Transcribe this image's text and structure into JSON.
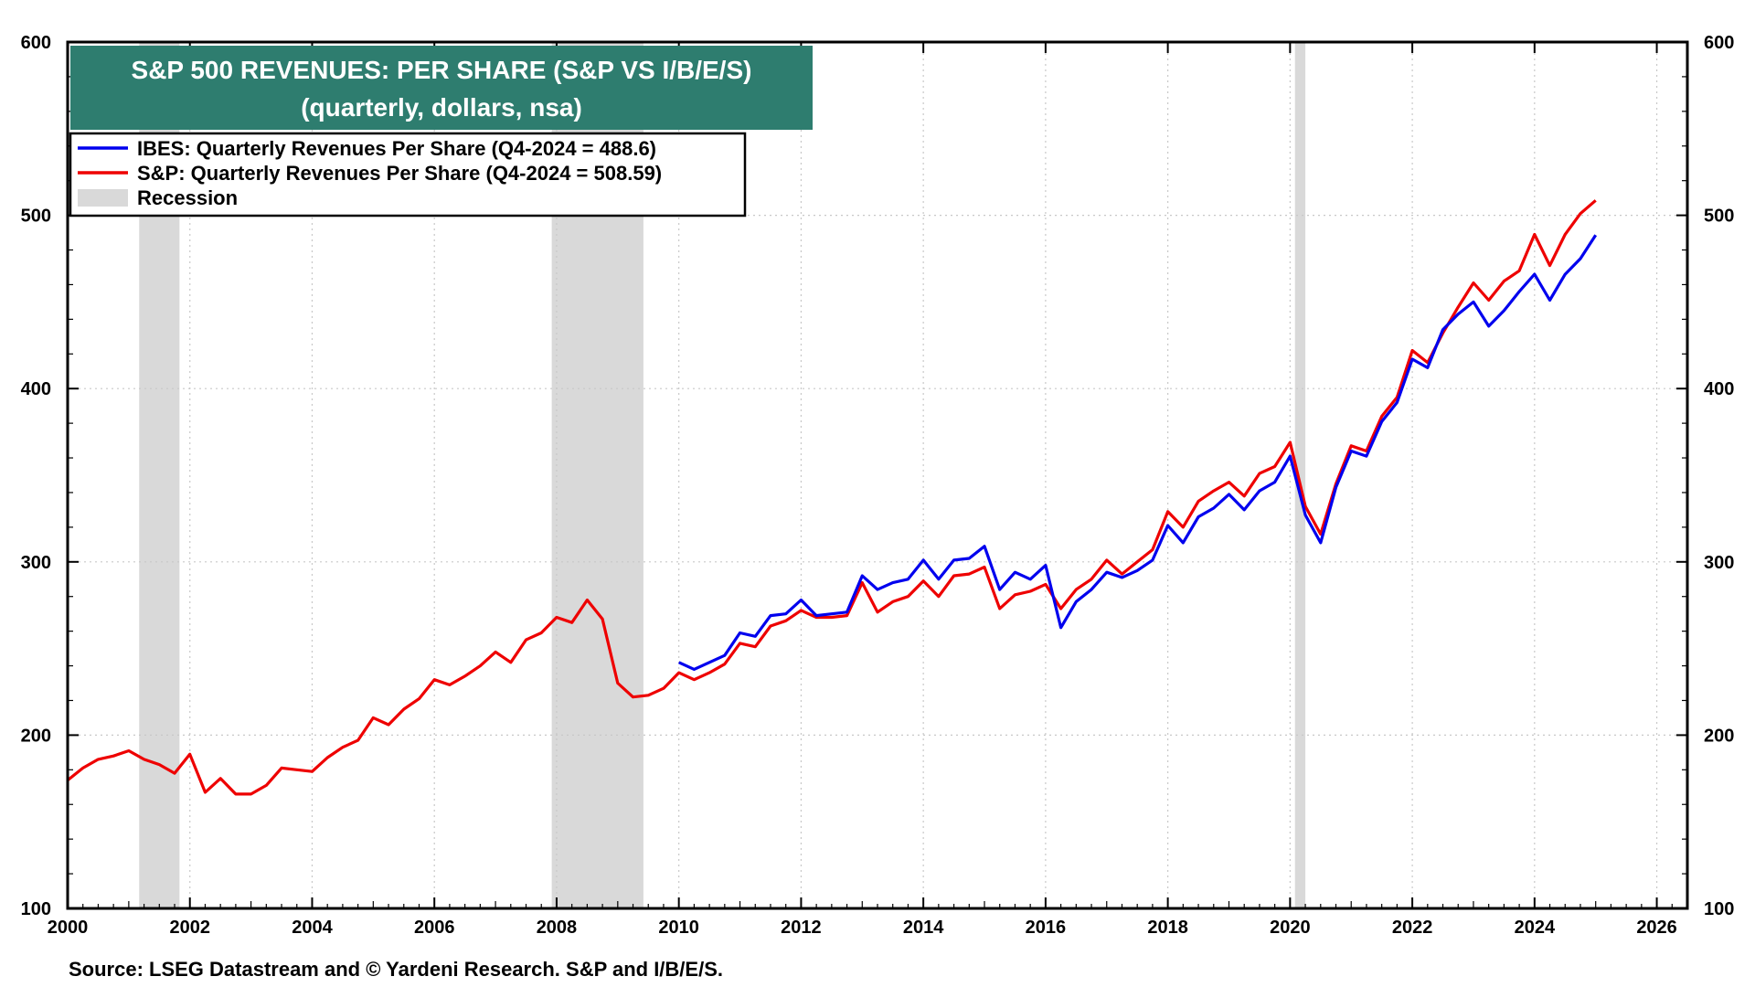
{
  "chart_data": {
    "type": "line",
    "title": "S&P 500 REVENUES: PER SHARE (S&P VS I/B/E/S)",
    "subtitle": "(quarterly, dollars, nsa)",
    "source": "Source: LSEG Datastream and © Yardeni Research. S&P and I/B/E/S.",
    "xlim": [
      2000,
      2026.5
    ],
    "ylim": [
      100,
      600
    ],
    "x_ticks": [
      "2000",
      "2002",
      "2004",
      "2006",
      "2008",
      "2010",
      "2012",
      "2014",
      "2016",
      "2018",
      "2020",
      "2022",
      "2024",
      "2026"
    ],
    "y_ticks": [
      "100",
      "200",
      "300",
      "400",
      "500",
      "600"
    ],
    "y_ticks_right": [
      "100",
      "200",
      "300",
      "400",
      "500",
      "600"
    ],
    "grid": true,
    "legend_position": "top-left",
    "recessions": [
      [
        2001.17,
        2001.83
      ],
      [
        2007.92,
        2009.42
      ],
      [
        2020.08,
        2020.25
      ]
    ],
    "legend": {
      "ibes": "IBES: Quarterly Revenues Per Share (Q4-2024 = 488.6)",
      "sp": "S&P: Quarterly Revenues Per Share (Q4-2024 = 508.59)",
      "recession": "Recession"
    },
    "colors": {
      "ibes": "#0000ee",
      "sp": "#ee0000",
      "recession": "#d9d9d9",
      "title_bg": "#2e7d6f"
    },
    "series": [
      {
        "name": "IBES: Quarterly Revenues Per Share (Q4-2024 = 488.6)",
        "x": [
          2010.0,
          2010.25,
          2010.5,
          2010.75,
          2011.0,
          2011.25,
          2011.5,
          2011.75,
          2012.0,
          2012.25,
          2012.5,
          2012.75,
          2013.0,
          2013.25,
          2013.5,
          2013.75,
          2014.0,
          2014.25,
          2014.5,
          2014.75,
          2015.0,
          2015.25,
          2015.5,
          2015.75,
          2016.0,
          2016.25,
          2016.5,
          2016.75,
          2017.0,
          2017.25,
          2017.5,
          2017.75,
          2018.0,
          2018.25,
          2018.5,
          2018.75,
          2019.0,
          2019.25,
          2019.5,
          2019.75,
          2020.0,
          2020.25,
          2020.5,
          2020.75,
          2021.0,
          2021.25,
          2021.5,
          2021.75,
          2022.0,
          2022.25,
          2022.5,
          2022.75,
          2023.0,
          2023.25,
          2023.5,
          2023.75,
          2024.0,
          2024.25,
          2024.5,
          2024.75,
          2025.0
        ],
        "values": [
          242,
          238,
          242,
          246,
          259,
          257,
          269,
          270,
          278,
          269,
          270,
          271,
          292,
          284,
          288,
          290,
          301,
          290,
          301,
          302,
          309,
          284,
          294,
          290,
          298,
          262,
          277,
          284,
          294,
          291,
          295,
          301,
          321,
          311,
          326,
          331,
          339,
          330,
          341,
          346,
          361,
          327,
          311,
          343,
          364,
          361,
          381,
          392,
          417,
          412,
          434,
          443,
          450,
          436,
          445,
          456,
          466,
          451,
          466,
          475,
          488.6
        ]
      },
      {
        "name": "S&P: Quarterly Revenues Per Share (Q4-2024 = 508.59)",
        "x": [
          2000.0,
          2000.25,
          2000.5,
          2000.75,
          2001.0,
          2001.25,
          2001.5,
          2001.75,
          2002.0,
          2002.25,
          2002.5,
          2002.75,
          2003.0,
          2003.25,
          2003.5,
          2003.75,
          2004.0,
          2004.25,
          2004.5,
          2004.75,
          2005.0,
          2005.25,
          2005.5,
          2005.75,
          2006.0,
          2006.25,
          2006.5,
          2006.75,
          2007.0,
          2007.25,
          2007.5,
          2007.75,
          2008.0,
          2008.25,
          2008.5,
          2008.75,
          2009.0,
          2009.25,
          2009.5,
          2009.75,
          2010.0,
          2010.25,
          2010.5,
          2010.75,
          2011.0,
          2011.25,
          2011.5,
          2011.75,
          2012.0,
          2012.25,
          2012.5,
          2012.75,
          2013.0,
          2013.25,
          2013.5,
          2013.75,
          2014.0,
          2014.25,
          2014.5,
          2014.75,
          2015.0,
          2015.25,
          2015.5,
          2015.75,
          2016.0,
          2016.25,
          2016.5,
          2016.75,
          2017.0,
          2017.25,
          2017.5,
          2017.75,
          2018.0,
          2018.25,
          2018.5,
          2018.75,
          2019.0,
          2019.25,
          2019.5,
          2019.75,
          2020.0,
          2020.25,
          2020.5,
          2020.75,
          2021.0,
          2021.25,
          2021.5,
          2021.75,
          2022.0,
          2022.25,
          2022.5,
          2022.75,
          2023.0,
          2023.25,
          2023.5,
          2023.75,
          2024.0,
          2024.25,
          2024.5,
          2024.75,
          2025.0
        ],
        "values": [
          174,
          181,
          186,
          188,
          191,
          186,
          183,
          178,
          189,
          167,
          175,
          166,
          166,
          171,
          181,
          180,
          179,
          187,
          193,
          197,
          210,
          206,
          215,
          221,
          232,
          229,
          234,
          240,
          248,
          242,
          255,
          259,
          268,
          265,
          278,
          267,
          230,
          222,
          223,
          227,
          236,
          232,
          236,
          241,
          253,
          251,
          263,
          266,
          272,
          268,
          268,
          269,
          288,
          271,
          277,
          280,
          289,
          280,
          292,
          293,
          297,
          273,
          281,
          283,
          287,
          273,
          284,
          290,
          301,
          293,
          300,
          307,
          329,
          320,
          335,
          341,
          346,
          338,
          351,
          355,
          369,
          332,
          316,
          345,
          367,
          364,
          384,
          395,
          422,
          415,
          432,
          447,
          461,
          451,
          462,
          468,
          489,
          471,
          489,
          501,
          508.59
        ]
      }
    ]
  }
}
